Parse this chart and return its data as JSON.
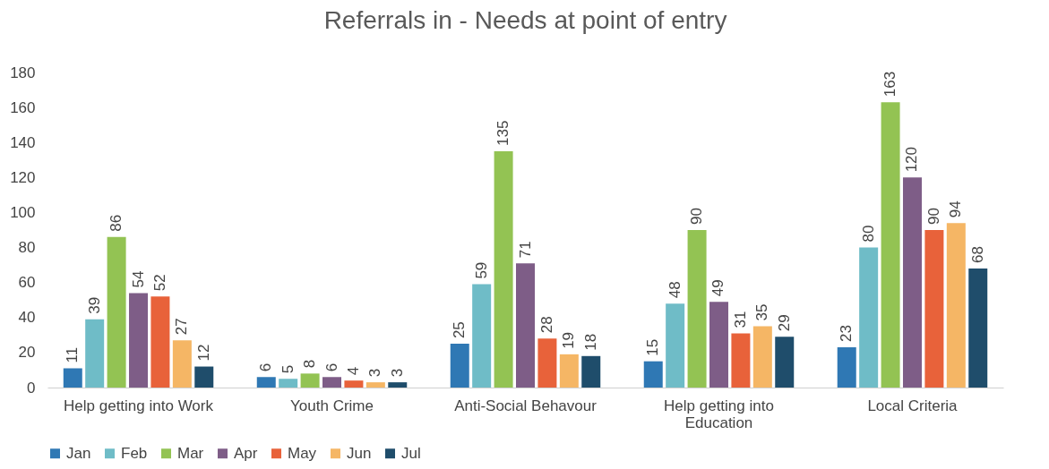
{
  "chart_data": {
    "type": "bar",
    "title": "Referrals in - Needs at point of entry",
    "categories": [
      "Help getting into Work",
      "Youth Crime",
      "Anti-Social Behavour",
      "Help getting into Education",
      "Local Criteria"
    ],
    "series": [
      {
        "name": "Jan",
        "color": "#2f78b4",
        "values": [
          11,
          6,
          25,
          15,
          23
        ]
      },
      {
        "name": "Feb",
        "color": "#6fbcc7",
        "values": [
          39,
          5,
          59,
          48,
          80
        ]
      },
      {
        "name": "Mar",
        "color": "#93c353",
        "values": [
          86,
          8,
          135,
          90,
          163
        ]
      },
      {
        "name": "Apr",
        "color": "#7e5d87",
        "values": [
          54,
          6,
          71,
          49,
          120
        ]
      },
      {
        "name": "May",
        "color": "#e8623a",
        "values": [
          52,
          4,
          28,
          31,
          90
        ]
      },
      {
        "name": "Jun",
        "color": "#f5b665",
        "values": [
          27,
          3,
          19,
          35,
          94
        ]
      },
      {
        "name": "Jul",
        "color": "#1f4d6b",
        "values": [
          12,
          3,
          18,
          29,
          68
        ]
      }
    ],
    "ylim": [
      0,
      180
    ],
    "yticks": [
      0,
      20,
      40,
      60,
      80,
      100,
      120,
      140,
      160,
      180
    ],
    "grid": false,
    "legend": "bottom",
    "data_labels": true
  }
}
